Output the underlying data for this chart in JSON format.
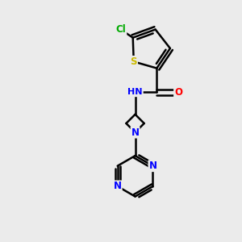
{
  "background_color": "#ebebeb",
  "bond_color": "#000000",
  "bond_width": 1.8,
  "atom_colors": {
    "C": "#000000",
    "H": "#555555",
    "N": "#0000ff",
    "O": "#ff0000",
    "S": "#ccbb00",
    "Cl": "#00aa00"
  },
  "font_size": 8.5,
  "fig_width": 3.0,
  "fig_height": 3.0,
  "dpi": 100
}
